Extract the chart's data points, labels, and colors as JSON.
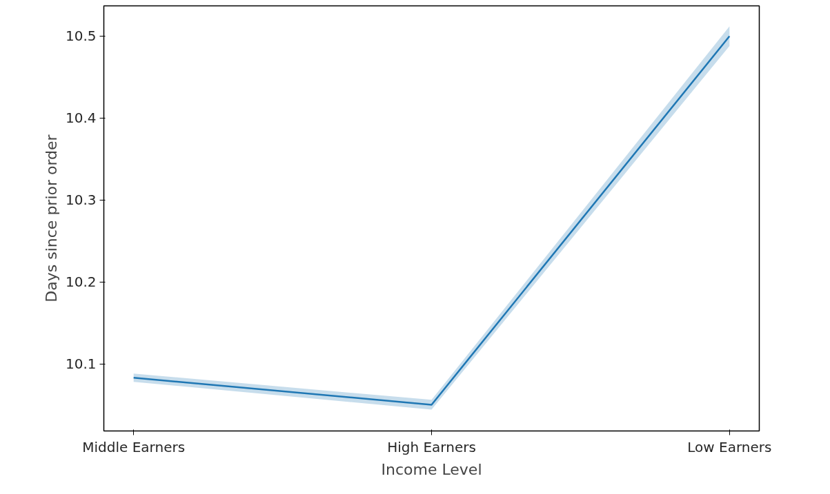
{
  "chart_data": {
    "type": "line",
    "categories": [
      "Middle Earners",
      "High Earners",
      "Low Earners"
    ],
    "series": [
      {
        "color": "#1f77b4",
        "values": [
          10.083,
          10.05,
          10.5
        ],
        "lower": [
          10.078,
          10.044,
          10.488
        ],
        "upper": [
          10.088,
          10.056,
          10.512
        ]
      }
    ],
    "xlabel": "Income Level",
    "ylabel": "Days since prior order",
    "ylim": [
      10.018,
      10.537
    ],
    "yticks": [
      10.1,
      10.2,
      10.3,
      10.4,
      10.5
    ],
    "grid": false
  }
}
